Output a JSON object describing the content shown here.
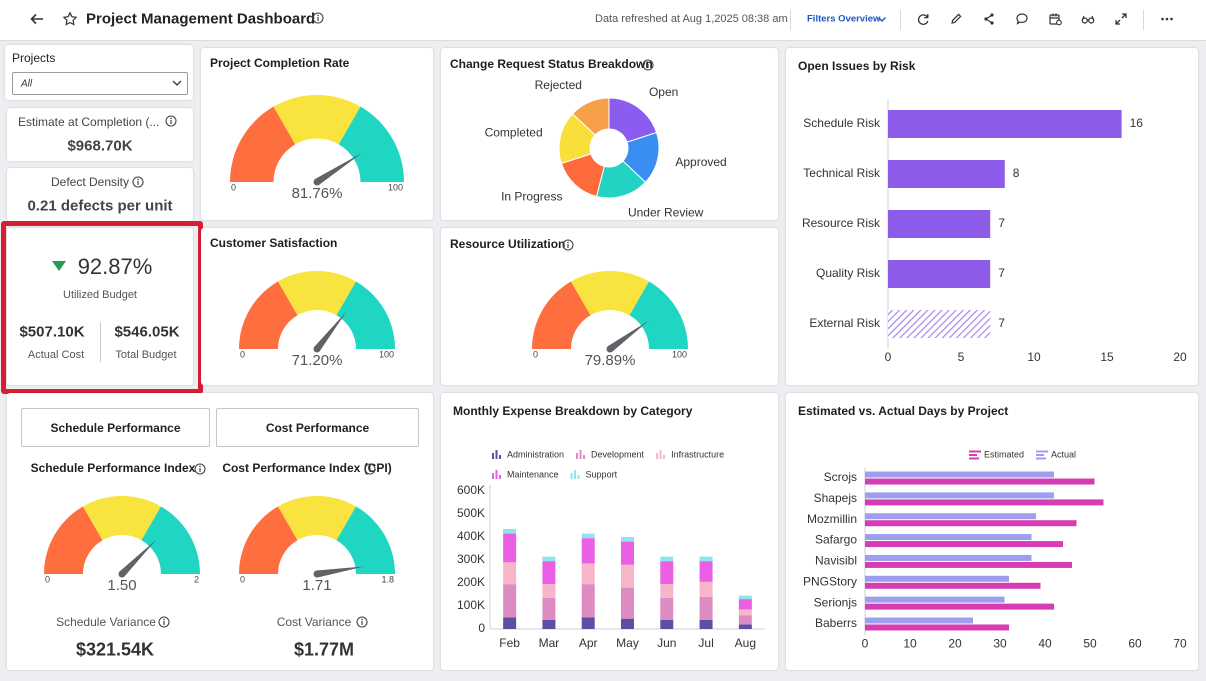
{
  "header": {
    "title": "Project Management Dashboard",
    "refreshed": "Data refreshed at Aug 1,2025 08:38 am",
    "filters": "Filters Overview"
  },
  "filter": {
    "label": "Projects",
    "selected": "All"
  },
  "kpis": [
    {
      "label": "Estimate at Completion (...",
      "value": "$968.70K"
    },
    {
      "label": "Defect Density",
      "value": "0.21 defects per unit"
    },
    {
      "value": "92.87%",
      "label": "Utilized Budget",
      "actual": "$507.10K",
      "actual_label": "Actual Cost",
      "total": "$546.05K",
      "total_label": "Total Budget"
    }
  ],
  "tabs": [
    "Schedule Performance",
    "Cost Performance"
  ],
  "variances": [
    {
      "label": "Schedule Variance",
      "value": "$321.54K"
    },
    {
      "label": "Cost Variance",
      "value": "$1.77M"
    }
  ],
  "chart_data": [
    {
      "type": "gauge",
      "title": "Project Completion Rate",
      "value": 81.76,
      "value_label": "81.76%",
      "lim": [
        0,
        100
      ],
      "ticks": [
        0,
        100
      ],
      "colors": [
        "#ff6e3f",
        "#f9e33f",
        "#1fd6c2"
      ]
    },
    {
      "type": "pie",
      "title": "Change Request Status Breakdown",
      "donut": true,
      "categories": [
        "Open",
        "Approved",
        "Under Review",
        "In Progress",
        "Completed",
        "Rejected"
      ],
      "values": [
        20,
        17,
        17,
        16,
        17,
        13
      ],
      "colors": [
        "#8b5cf0",
        "#3a8ef2",
        "#22d2c2",
        "#ff6a3d",
        "#f8df3a",
        "#f6a04a"
      ]
    },
    {
      "type": "bar",
      "orientation": "horizontal",
      "title": "Open Issues by Risk",
      "categories": [
        "Schedule Risk",
        "Technical Risk",
        "Resource Risk",
        "Quality Risk",
        "External Risk"
      ],
      "values": [
        16,
        8,
        7,
        7,
        7
      ],
      "color": "#8c5ce8",
      "patterns": [
        "solid",
        "solid",
        "solid",
        "solid",
        "hatched"
      ],
      "xlim": [
        0,
        20
      ],
      "xticks": [
        0,
        5,
        10,
        15,
        20
      ],
      "grid": false
    },
    {
      "type": "gauge",
      "title": "Customer Satisfaction",
      "value": 71.2,
      "value_label": "71.20%",
      "lim": [
        0,
        100
      ],
      "ticks": [
        0,
        100
      ],
      "colors": [
        "#ff6e3f",
        "#f9e33f",
        "#1fd6c2"
      ]
    },
    {
      "type": "gauge",
      "title": "Resource Utilization",
      "value": 79.89,
      "value_label": "79.89%",
      "lim": [
        0,
        100
      ],
      "ticks": [
        0,
        100
      ],
      "colors": [
        "#ff6e3f",
        "#f9e33f",
        "#1fd6c2"
      ]
    },
    {
      "type": "bar",
      "orientation": "vertical",
      "stacked": true,
      "title": "Monthly Expense Breakdown by Category",
      "categories": [
        "Feb",
        "Mar",
        "Apr",
        "May",
        "Jun",
        "Jul",
        "Aug"
      ],
      "series": [
        {
          "name": "Administration",
          "color": "#5f4fa3",
          "values": [
            50000,
            40000,
            50000,
            45000,
            40000,
            40000,
            20000
          ]
        },
        {
          "name": "Development",
          "color": "#dc8cc0",
          "values": [
            145000,
            95000,
            145000,
            135000,
            95000,
            100000,
            40000
          ]
        },
        {
          "name": "Infrastructure",
          "color": "#f6b5c8",
          "values": [
            95000,
            60000,
            90000,
            100000,
            60000,
            65000,
            25000
          ]
        },
        {
          "name": "Maintenance",
          "color": "#eb5fe4",
          "values": [
            125000,
            100000,
            110000,
            100000,
            100000,
            90000,
            45000
          ]
        },
        {
          "name": "Support",
          "color": "#8fe5ea",
          "values": [
            20000,
            20000,
            20000,
            20000,
            20000,
            20000,
            15000
          ]
        }
      ],
      "ylim": [
        0,
        600000
      ],
      "yticks": [
        0,
        {
          "value": 100000,
          "label": "100K"
        },
        {
          "value": 200000,
          "label": "200K"
        },
        {
          "value": 300000,
          "label": "300K"
        },
        {
          "value": 400000,
          "label": "400K"
        },
        {
          "value": 500000,
          "label": "500K"
        },
        {
          "value": 600000,
          "label": "600K"
        }
      ],
      "grid": false,
      "legend": "top-left"
    },
    {
      "type": "bar",
      "orientation": "horizontal",
      "title": "Estimated vs. Actual Days by Project",
      "categories": [
        "Scrojs",
        "Shapejs",
        "Mozmillin",
        "Safargo",
        "Navisibl",
        "PNGStory",
        "Serionjs",
        "Baberrs"
      ],
      "series": [
        {
          "name": "Estimated",
          "color": "#d63cb4",
          "values": [
            51,
            53,
            47,
            44,
            46,
            39,
            42,
            32
          ]
        },
        {
          "name": "Actual",
          "color": "#9d9ef0",
          "values": [
            42,
            42,
            38,
            37,
            37,
            32,
            31,
            24
          ]
        }
      ],
      "xlim": [
        0,
        70
      ],
      "xticks": [
        0,
        10,
        20,
        30,
        40,
        50,
        60,
        70
      ],
      "grid": false,
      "legend": "top"
    },
    {
      "type": "gauge",
      "title": "Schedule Performance Index",
      "value": 1.5,
      "value_label": "1.50",
      "lim": [
        0,
        2
      ],
      "ticks": [
        0,
        2
      ],
      "colors": [
        "#ff6e3f",
        "#f9e33f",
        "#1fd6c2"
      ]
    },
    {
      "type": "gauge",
      "title": "Cost Performance Index (CPI)",
      "value": 1.71,
      "lim": [
        0,
        1.8
      ],
      "ticks": [
        0,
        1.8
      ],
      "colors": [
        "#ff6e3f",
        "#f9e33f",
        "#1fd6c2"
      ]
    }
  ]
}
